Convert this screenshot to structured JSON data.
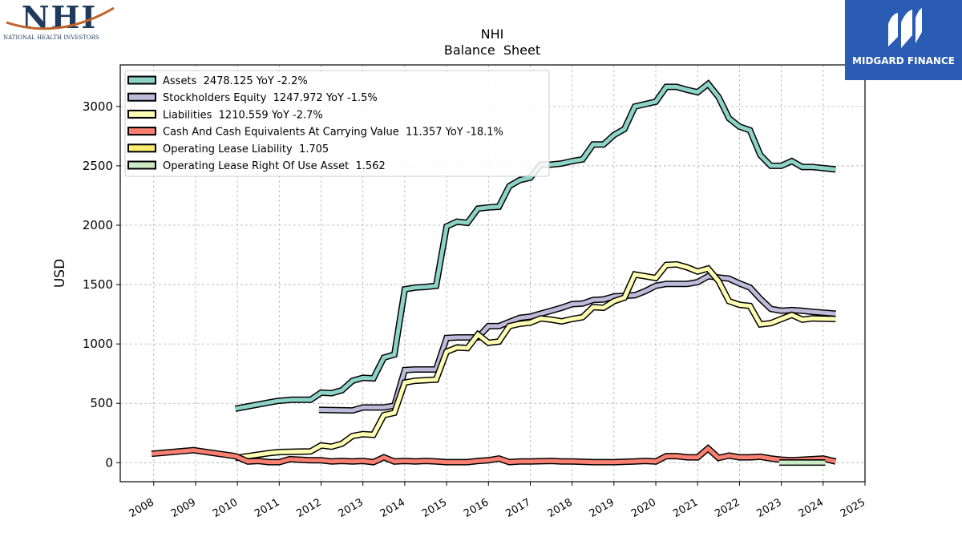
{
  "logos": {
    "left": {
      "text": "NHI",
      "subtitle": "NATIONAL HEALTH INVESTORS",
      "color": "#1e3a5c",
      "swoosh_color": "#c0622b"
    },
    "right": {
      "text": "MIDGARD FINANCE",
      "background": "#2b5cb3"
    }
  },
  "chart_data": {
    "type": "line",
    "title": "NHI",
    "subtitle": "Balance  Sheet",
    "ylabel": "USD",
    "xlabel": "",
    "xlim": [
      2007.2,
      2025.0
    ],
    "ylim": [
      -160,
      3350
    ],
    "x_ticks": [
      2008,
      2009,
      2010,
      2011,
      2012,
      2013,
      2014,
      2015,
      2016,
      2017,
      2018,
      2019,
      2020,
      2021,
      2022,
      2023,
      2024,
      2025
    ],
    "y_ticks": [
      0,
      500,
      1000,
      1500,
      2000,
      2500,
      3000
    ],
    "grid": true,
    "legend_position": "top-left",
    "series": [
      {
        "name": "Assets  2478.125 YoY -2.2%",
        "color": "#8dd3c7",
        "points": [
          [
            2009.95,
            455
          ],
          [
            2010.95,
            520
          ],
          [
            2011.3,
            530
          ],
          [
            2011.75,
            530
          ],
          [
            2012.0,
            590
          ],
          [
            2012.25,
            585
          ],
          [
            2012.5,
            610
          ],
          [
            2012.75,
            690
          ],
          [
            2013.0,
            715
          ],
          [
            2013.25,
            710
          ],
          [
            2013.5,
            885
          ],
          [
            2013.75,
            910
          ],
          [
            2014.0,
            1460
          ],
          [
            2014.25,
            1475
          ],
          [
            2014.5,
            1480
          ],
          [
            2014.75,
            1490
          ],
          [
            2015.0,
            1990
          ],
          [
            2015.25,
            2030
          ],
          [
            2015.5,
            2020
          ],
          [
            2015.75,
            2140
          ],
          [
            2016.0,
            2150
          ],
          [
            2016.25,
            2155
          ],
          [
            2016.5,
            2330
          ],
          [
            2016.75,
            2380
          ],
          [
            2017.0,
            2400
          ],
          [
            2017.25,
            2510
          ],
          [
            2017.5,
            2510
          ],
          [
            2017.75,
            2520
          ],
          [
            2018.0,
            2540
          ],
          [
            2018.25,
            2555
          ],
          [
            2018.5,
            2680
          ],
          [
            2018.75,
            2680
          ],
          [
            2019.0,
            2760
          ],
          [
            2019.25,
            2810
          ],
          [
            2019.5,
            3000
          ],
          [
            2019.75,
            3020
          ],
          [
            2020.0,
            3040
          ],
          [
            2020.25,
            3165
          ],
          [
            2020.5,
            3165
          ],
          [
            2020.75,
            3140
          ],
          [
            2021.0,
            3120
          ],
          [
            2021.25,
            3190
          ],
          [
            2021.5,
            3080
          ],
          [
            2021.75,
            2900
          ],
          [
            2022.0,
            2830
          ],
          [
            2022.25,
            2800
          ],
          [
            2022.5,
            2590
          ],
          [
            2022.75,
            2500
          ],
          [
            2023.0,
            2500
          ],
          [
            2023.25,
            2540
          ],
          [
            2023.5,
            2490
          ],
          [
            2023.75,
            2490
          ],
          [
            2024.3,
            2470
          ]
        ]
      },
      {
        "name": "Stockholders Equity  1247.972 YoY -1.5%",
        "color": "#bebada",
        "points": [
          [
            2011.95,
            445
          ],
          [
            2012.75,
            440
          ],
          [
            2013.0,
            465
          ],
          [
            2013.5,
            465
          ],
          [
            2013.75,
            480
          ],
          [
            2014.0,
            780
          ],
          [
            2014.25,
            785
          ],
          [
            2014.75,
            785
          ],
          [
            2015.0,
            1050
          ],
          [
            2015.25,
            1055
          ],
          [
            2015.75,
            1055
          ],
          [
            2016.0,
            1150
          ],
          [
            2016.25,
            1150
          ],
          [
            2016.5,
            1185
          ],
          [
            2016.75,
            1220
          ],
          [
            2017.0,
            1230
          ],
          [
            2017.25,
            1255
          ],
          [
            2017.5,
            1280
          ],
          [
            2017.75,
            1305
          ],
          [
            2018.0,
            1335
          ],
          [
            2018.25,
            1340
          ],
          [
            2018.5,
            1370
          ],
          [
            2018.75,
            1375
          ],
          [
            2019.0,
            1400
          ],
          [
            2019.25,
            1405
          ],
          [
            2019.5,
            1410
          ],
          [
            2019.75,
            1445
          ],
          [
            2020.0,
            1490
          ],
          [
            2020.25,
            1505
          ],
          [
            2020.5,
            1505
          ],
          [
            2020.75,
            1505
          ],
          [
            2021.0,
            1520
          ],
          [
            2021.25,
            1570
          ],
          [
            2021.5,
            1560
          ],
          [
            2021.75,
            1550
          ],
          [
            2022.0,
            1510
          ],
          [
            2022.25,
            1475
          ],
          [
            2022.5,
            1380
          ],
          [
            2022.75,
            1295
          ],
          [
            2023.0,
            1280
          ],
          [
            2023.25,
            1285
          ],
          [
            2023.5,
            1280
          ],
          [
            2023.75,
            1270
          ],
          [
            2024.3,
            1255
          ]
        ]
      },
      {
        "name": "Liabilities  1210.559 YoY -2.7%",
        "color": "#ffffb3",
        "points": [
          [
            2009.95,
            40
          ],
          [
            2010.75,
            80
          ],
          [
            2011.0,
            90
          ],
          [
            2011.75,
            95
          ],
          [
            2012.0,
            145
          ],
          [
            2012.25,
            135
          ],
          [
            2012.5,
            160
          ],
          [
            2012.75,
            225
          ],
          [
            2013.0,
            240
          ],
          [
            2013.25,
            235
          ],
          [
            2013.5,
            400
          ],
          [
            2013.75,
            420
          ],
          [
            2014.0,
            675
          ],
          [
            2014.25,
            690
          ],
          [
            2014.75,
            700
          ],
          [
            2015.0,
            935
          ],
          [
            2015.25,
            970
          ],
          [
            2015.5,
            965
          ],
          [
            2015.75,
            1080
          ],
          [
            2016.0,
            1010
          ],
          [
            2016.25,
            1020
          ],
          [
            2016.5,
            1150
          ],
          [
            2016.75,
            1170
          ],
          [
            2017.0,
            1180
          ],
          [
            2017.25,
            1215
          ],
          [
            2017.5,
            1205
          ],
          [
            2017.75,
            1190
          ],
          [
            2018.0,
            1210
          ],
          [
            2018.25,
            1225
          ],
          [
            2018.5,
            1310
          ],
          [
            2018.75,
            1305
          ],
          [
            2019.0,
            1360
          ],
          [
            2019.25,
            1390
          ],
          [
            2019.5,
            1585
          ],
          [
            2019.75,
            1570
          ],
          [
            2020.0,
            1555
          ],
          [
            2020.25,
            1665
          ],
          [
            2020.5,
            1670
          ],
          [
            2020.75,
            1645
          ],
          [
            2021.0,
            1610
          ],
          [
            2021.25,
            1635
          ],
          [
            2021.5,
            1530
          ],
          [
            2021.75,
            1360
          ],
          [
            2022.0,
            1330
          ],
          [
            2022.25,
            1320
          ],
          [
            2022.5,
            1165
          ],
          [
            2022.75,
            1175
          ],
          [
            2023.0,
            1210
          ],
          [
            2023.25,
            1245
          ],
          [
            2023.5,
            1205
          ],
          [
            2023.75,
            1215
          ],
          [
            2024.3,
            1210
          ]
        ]
      },
      {
        "name": "Cash And Cash Equivalents At Carrying Value  11.357 YoY -18.1%",
        "color": "#fb8072",
        "points": [
          [
            2007.95,
            75
          ],
          [
            2008.95,
            105
          ],
          [
            2009.95,
            55
          ],
          [
            2010.25,
            10
          ],
          [
            2010.5,
            15
          ],
          [
            2010.75,
            5
          ],
          [
            2011.0,
            5
          ],
          [
            2011.25,
            30
          ],
          [
            2011.5,
            25
          ],
          [
            2011.75,
            20
          ],
          [
            2012.0,
            20
          ],
          [
            2012.25,
            10
          ],
          [
            2012.5,
            15
          ],
          [
            2012.75,
            10
          ],
          [
            2013.0,
            15
          ],
          [
            2013.25,
            5
          ],
          [
            2013.5,
            45
          ],
          [
            2013.75,
            10
          ],
          [
            2014.0,
            15
          ],
          [
            2014.25,
            10
          ],
          [
            2014.5,
            15
          ],
          [
            2014.75,
            10
          ],
          [
            2015.0,
            5
          ],
          [
            2015.5,
            5
          ],
          [
            2015.75,
            15
          ],
          [
            2016.0,
            20
          ],
          [
            2016.25,
            35
          ],
          [
            2016.5,
            5
          ],
          [
            2016.75,
            10
          ],
          [
            2017.0,
            10
          ],
          [
            2017.5,
            15
          ],
          [
            2017.75,
            10
          ],
          [
            2018.0,
            10
          ],
          [
            2018.5,
            5
          ],
          [
            2018.75,
            5
          ],
          [
            2019.0,
            5
          ],
          [
            2019.5,
            10
          ],
          [
            2019.75,
            15
          ],
          [
            2020.0,
            10
          ],
          [
            2020.25,
            55
          ],
          [
            2020.5,
            55
          ],
          [
            2020.75,
            45
          ],
          [
            2021.0,
            45
          ],
          [
            2021.25,
            120
          ],
          [
            2021.5,
            40
          ],
          [
            2021.75,
            60
          ],
          [
            2022.0,
            45
          ],
          [
            2022.25,
            45
          ],
          [
            2022.5,
            50
          ],
          [
            2022.75,
            35
          ],
          [
            2023.0,
            25
          ],
          [
            2023.25,
            20
          ],
          [
            2023.5,
            25
          ],
          [
            2023.75,
            30
          ],
          [
            2024.0,
            35
          ],
          [
            2024.3,
            10
          ]
        ]
      },
      {
        "name": "Operating Lease Liability  1.705",
        "color": "#ffed6f",
        "points": [
          [
            2022.95,
            2
          ],
          [
            2024.05,
            2
          ]
        ]
      },
      {
        "name": "Operating Lease Right Of Use Asset  1.562",
        "color": "#ccebc5",
        "points": [
          [
            2022.95,
            1
          ],
          [
            2024.05,
            1
          ]
        ]
      }
    ]
  }
}
